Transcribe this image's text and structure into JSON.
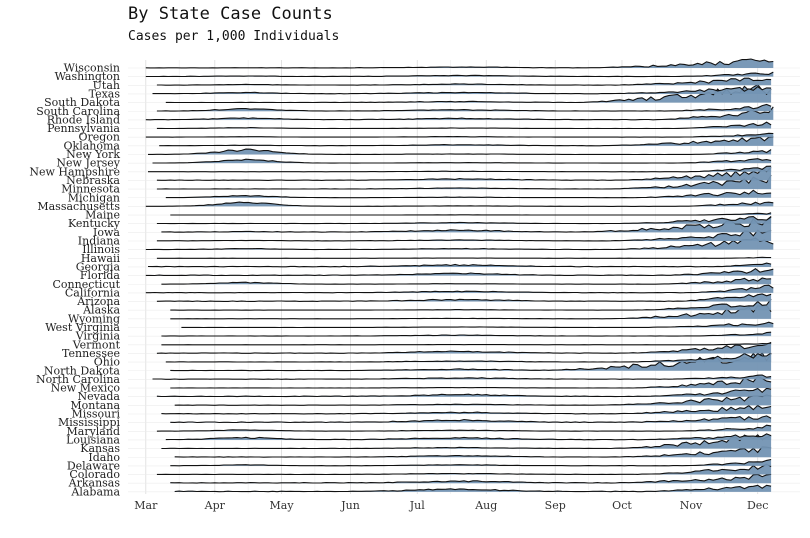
{
  "chart_data": {
    "type": "area",
    "title": "By State Case Counts",
    "subtitle": "Cases per 1,000 Individuals",
    "xlabel": "",
    "ylabel": "",
    "x_ticks": [
      "Mar",
      "Apr",
      "May",
      "Jun",
      "Jul",
      "Aug",
      "Sep",
      "Oct",
      "Nov",
      "Dec"
    ],
    "x_range": [
      "2020-02-22",
      "2020-12-20"
    ],
    "grid": true,
    "legend": "none",
    "fill_color": "#7393b3",
    "line_color": "#111111",
    "series": [
      {
        "name": "Wisconsin",
        "start": "2020-03-01",
        "base": 0.1,
        "peak": 0.95,
        "rise": "2020-09-15",
        "wave": 0.0
      },
      {
        "name": "Washington",
        "start": "2020-03-01",
        "base": 0.12,
        "peak": 0.45,
        "rise": "2020-10-25",
        "wave": 0.05
      },
      {
        "name": "Utah",
        "start": "2020-03-06",
        "base": 0.12,
        "peak": 0.85,
        "rise": "2020-09-25",
        "wave": 0.08
      },
      {
        "name": "Texas",
        "start": "2020-03-04",
        "base": 0.15,
        "peak": 0.75,
        "rise": "2020-09-20",
        "wave": 0.15
      },
      {
        "name": "South Dakota",
        "start": "2020-03-10",
        "base": 0.1,
        "peak": 1.8,
        "rise": "2020-09-10",
        "wave": 0.0
      },
      {
        "name": "South Carolina",
        "start": "2020-03-06",
        "base": 0.15,
        "peak": 0.6,
        "rise": "2020-10-20",
        "wave": 0.25
      },
      {
        "name": "Rhode Island",
        "start": "2020-03-01",
        "base": 0.15,
        "peak": 1.1,
        "rise": "2020-10-15",
        "wave": 0.2
      },
      {
        "name": "Pennsylvania",
        "start": "2020-03-06",
        "base": 0.05,
        "peak": 0.6,
        "rise": "2020-10-25",
        "wave": 0.1
      },
      {
        "name": "Oregon",
        "start": "2020-03-01",
        "base": 0.05,
        "peak": 0.35,
        "rise": "2020-10-25",
        "wave": 0.05
      },
      {
        "name": "Oklahoma",
        "start": "2020-03-07",
        "base": 0.1,
        "peak": 0.85,
        "rise": "2020-09-20",
        "wave": 0.05
      },
      {
        "name": "New York",
        "start": "2020-03-02",
        "base": 0.05,
        "peak": 0.45,
        "rise": "2020-11-01",
        "wave": 0.55
      },
      {
        "name": "New Jersey",
        "start": "2020-03-04",
        "base": 0.05,
        "peak": 0.55,
        "rise": "2020-10-25",
        "wave": 0.4
      },
      {
        "name": "New Hampshire",
        "start": "2020-03-02",
        "base": 0.05,
        "peak": 0.55,
        "rise": "2020-10-30",
        "wave": 0.0
      },
      {
        "name": "Nebraska",
        "start": "2020-03-06",
        "base": 0.15,
        "peak": 1.1,
        "rise": "2020-09-25",
        "wave": 0.0
      },
      {
        "name": "Minnesota",
        "start": "2020-03-06",
        "base": 0.1,
        "peak": 1.2,
        "rise": "2020-09-25",
        "wave": 0.0
      },
      {
        "name": "Michigan",
        "start": "2020-03-10",
        "base": 0.05,
        "peak": 0.85,
        "rise": "2020-10-05",
        "wave": 0.25
      },
      {
        "name": "Massachusetts",
        "start": "2020-03-01",
        "base": 0.05,
        "peak": 0.55,
        "rise": "2020-10-25",
        "wave": 0.45
      },
      {
        "name": "Maine",
        "start": "2020-03-12",
        "base": 0.02,
        "peak": 0.2,
        "rise": "2020-11-01",
        "wave": 0.0
      },
      {
        "name": "Kentucky",
        "start": "2020-03-06",
        "base": 0.1,
        "peak": 0.75,
        "rise": "2020-09-25",
        "wave": 0.0
      },
      {
        "name": "Iowa",
        "start": "2020-03-08",
        "base": 0.2,
        "peak": 1.4,
        "rise": "2020-09-10",
        "wave": 0.05
      },
      {
        "name": "Indiana",
        "start": "2020-03-06",
        "base": 0.1,
        "peak": 1.1,
        "rise": "2020-09-25",
        "wave": 0.05
      },
      {
        "name": "Illinois",
        "start": "2020-03-01",
        "base": 0.1,
        "peak": 1.2,
        "rise": "2020-09-25",
        "wave": 0.1
      },
      {
        "name": "Hawaii",
        "start": "2020-03-06",
        "base": 0.02,
        "peak": 0.12,
        "rise": "2020-11-15",
        "wave": 0.0
      },
      {
        "name": "Georgia",
        "start": "2020-03-02",
        "base": 0.2,
        "peak": 0.4,
        "rise": "2020-11-10",
        "wave": 0.0
      },
      {
        "name": "Florida",
        "start": "2020-03-01",
        "base": 0.2,
        "peak": 0.7,
        "rise": "2020-10-20",
        "wave": 0.0
      },
      {
        "name": "Connecticut",
        "start": "2020-03-08",
        "base": 0.05,
        "peak": 0.75,
        "rise": "2020-10-15",
        "wave": 0.2
      },
      {
        "name": "California",
        "start": "2020-03-01",
        "base": 0.15,
        "peak": 0.8,
        "rise": "2020-11-01",
        "wave": 0.0
      },
      {
        "name": "Arizona",
        "start": "2020-03-06",
        "base": 0.2,
        "peak": 0.95,
        "rise": "2020-10-25",
        "wave": 0.0
      },
      {
        "name": "Alaska",
        "start": "2020-03-12",
        "base": 0.05,
        "peak": 1.0,
        "rise": "2020-10-05",
        "wave": 0.0
      },
      {
        "name": "Wyoming",
        "start": "2020-03-12",
        "base": 0.05,
        "peak": 1.4,
        "rise": "2020-09-25",
        "wave": 0.0
      },
      {
        "name": "West Virginia",
        "start": "2020-03-17",
        "base": 0.05,
        "peak": 0.55,
        "rise": "2020-10-10",
        "wave": 0.0
      },
      {
        "name": "Virginia",
        "start": "2020-03-08",
        "base": 0.1,
        "peak": 0.35,
        "rise": "2020-11-01",
        "wave": 0.0
      },
      {
        "name": "Vermont",
        "start": "2020-03-08",
        "base": 0.02,
        "peak": 0.2,
        "rise": "2020-11-10",
        "wave": 0.0
      },
      {
        "name": "Tennessee",
        "start": "2020-03-06",
        "base": 0.2,
        "peak": 1.1,
        "rise": "2020-10-01",
        "wave": 0.0
      },
      {
        "name": "Ohio",
        "start": "2020-03-10",
        "base": 0.1,
        "peak": 1.0,
        "rise": "2020-10-05",
        "wave": 0.0
      },
      {
        "name": "North Dakota",
        "start": "2020-03-12",
        "base": 0.15,
        "peak": 1.9,
        "rise": "2020-08-25",
        "wave": 0.0
      },
      {
        "name": "North Carolina",
        "start": "2020-03-04",
        "base": 0.15,
        "peak": 0.45,
        "rise": "2020-10-20",
        "wave": 0.0
      },
      {
        "name": "New Mexico",
        "start": "2020-03-12",
        "base": 0.05,
        "peak": 1.2,
        "rise": "2020-10-05",
        "wave": 0.0
      },
      {
        "name": "Nevada",
        "start": "2020-03-06",
        "base": 0.2,
        "peak": 0.9,
        "rise": "2020-10-10",
        "wave": 0.0
      },
      {
        "name": "Montana",
        "start": "2020-03-14",
        "base": 0.1,
        "peak": 1.1,
        "rise": "2020-09-20",
        "wave": 0.0
      },
      {
        "name": "Missouri",
        "start": "2020-03-08",
        "base": 0.15,
        "peak": 0.9,
        "rise": "2020-09-25",
        "wave": 0.0
      },
      {
        "name": "Mississippi",
        "start": "2020-03-12",
        "base": 0.25,
        "peak": 0.7,
        "rise": "2020-10-01",
        "wave": 0.0
      },
      {
        "name": "Maryland",
        "start": "2020-03-06",
        "base": 0.1,
        "peak": 0.55,
        "rise": "2020-10-25",
        "wave": 0.15
      },
      {
        "name": "Louisiana",
        "start": "2020-03-10",
        "base": 0.2,
        "peak": 0.65,
        "rise": "2020-10-10",
        "wave": 0.25
      },
      {
        "name": "Kansas",
        "start": "2020-03-08",
        "base": 0.1,
        "peak": 1.5,
        "rise": "2020-09-25",
        "wave": 0.0
      },
      {
        "name": "Idaho",
        "start": "2020-03-14",
        "base": 0.15,
        "peak": 1.0,
        "rise": "2020-09-25",
        "wave": 0.0
      },
      {
        "name": "Delaware",
        "start": "2020-03-12",
        "base": 0.1,
        "peak": 0.55,
        "rise": "2020-10-25",
        "wave": 0.1
      },
      {
        "name": "Colorado",
        "start": "2020-03-06",
        "base": 0.1,
        "peak": 0.95,
        "rise": "2020-10-05",
        "wave": 0.0
      },
      {
        "name": "Arkansas",
        "start": "2020-03-12",
        "base": 0.2,
        "peak": 0.85,
        "rise": "2020-09-25",
        "wave": 0.0
      },
      {
        "name": "Alabama",
        "start": "2020-03-14",
        "base": 0.25,
        "peak": 0.75,
        "rise": "2020-10-10",
        "wave": 0.0
      }
    ]
  }
}
